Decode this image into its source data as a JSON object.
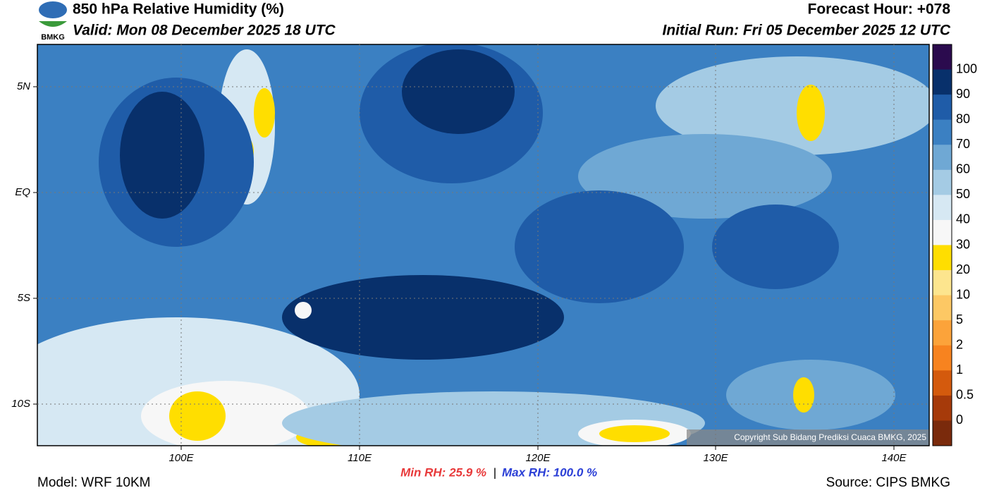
{
  "header": {
    "title": "850 hPa Relative Humidity (%)",
    "valid": "Valid: Mon 08 December 2025 18 UTC",
    "forecast_hour": "Forecast Hour: +078",
    "initial_run": "Initial Run: Fri 05 December 2025 12 UTC",
    "logo_text": "BMKG"
  },
  "map": {
    "lat_labels": [
      "5N",
      "EQ",
      "5S",
      "10S"
    ],
    "lon_labels": [
      "100E",
      "110E",
      "120E",
      "130E",
      "140E"
    ],
    "copyright": "Copyright Sub Bidang Prediksi Cuaca BMKG, 2025"
  },
  "colorbar": {
    "labels": [
      "100",
      "90",
      "80",
      "70",
      "60",
      "50",
      "40",
      "30",
      "20",
      "10",
      "5",
      "2",
      "1",
      "0.5",
      "0"
    ],
    "colors": [
      "#2b0b4e",
      "#08306b",
      "#1f5ca8",
      "#3b80c2",
      "#6fa8d4",
      "#a4cbe4",
      "#d6e8f3",
      "#f7f7f7",
      "#ffde00",
      "#fde58e",
      "#fdc864",
      "#fca33a",
      "#f7831f",
      "#d45a0d",
      "#a63a0a",
      "#7a2a0c",
      "#5c1f0a",
      "#b01515",
      "#e53a2e"
    ]
  },
  "footer": {
    "model": "Model: WRF 10KM",
    "min_rh": "Min RH:  25.9 %",
    "separator": "|",
    "max_rh": "Max RH: 100.0 %",
    "source": "Source: CIPS BMKG"
  }
}
